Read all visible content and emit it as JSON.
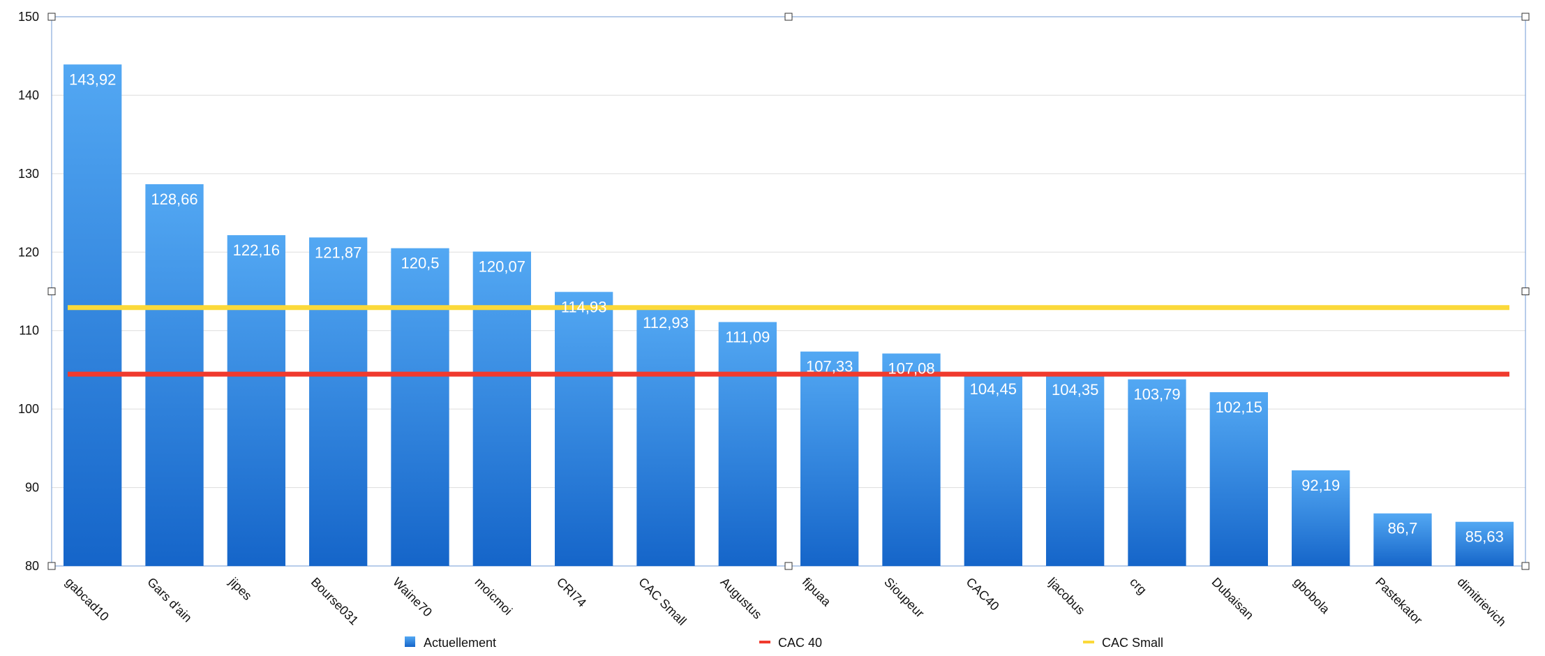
{
  "chart_data": {
    "type": "bar",
    "categories": [
      "gabcad10",
      "Gars d'ain",
      "jipes",
      "Bourse031",
      "Waine70",
      "moicmoi",
      "CRI74",
      "CAC Small",
      "Augustus",
      "fipuaa",
      "Sioupeur",
      "CAC40",
      "ljacobus",
      "crg",
      "Dubaisan",
      "gbobola",
      "Pastekator",
      "dimitrievich"
    ],
    "series": [
      {
        "name": "Actuellement",
        "values": [
          143.92,
          128.66,
          122.16,
          121.87,
          120.5,
          120.07,
          114.93,
          112.93,
          111.09,
          107.33,
          107.08,
          104.45,
          104.35,
          103.79,
          102.15,
          92.19,
          86.7,
          85.63
        ],
        "labels": [
          "143,92",
          "128,66",
          "122,16",
          "121,87",
          "120,5",
          "120,07",
          "114,93",
          "112,93",
          "111,09",
          "107,33",
          "107,08",
          "104,45",
          "104,35",
          "103,79",
          "102,15",
          "92,19",
          "86,7",
          "85,63"
        ]
      }
    ],
    "reference_lines": [
      {
        "name": "CAC 40",
        "value": 104.45,
        "color": "#f03a2e"
      },
      {
        "name": "CAC Small",
        "value": 112.93,
        "color": "#fbd93a"
      }
    ],
    "yticks": [
      "80",
      "90",
      "100",
      "110",
      "120",
      "130",
      "140",
      "150"
    ],
    "ylim": [
      80,
      150
    ],
    "grid": true,
    "legend_position": "bottom",
    "colors": {
      "bar_top": "#53a8f3",
      "bar_bottom": "#1565c9",
      "grid": "#dddddd",
      "frame": "#6f9ad6"
    }
  }
}
